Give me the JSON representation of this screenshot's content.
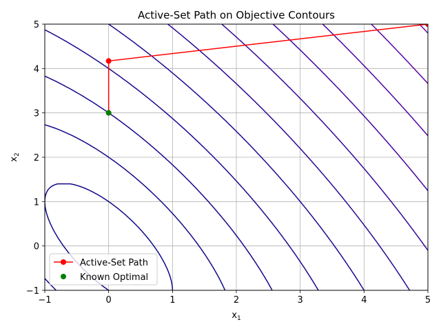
{
  "chart_data": {
    "type": "line",
    "title": "Active-Set Path on Objective Contours",
    "xlabel": {
      "base": "x",
      "sub": "1"
    },
    "ylabel": {
      "base": "x",
      "sub": "2"
    },
    "xlim": [
      -1,
      5
    ],
    "ylim": [
      -1,
      5
    ],
    "xticks": [
      -1,
      0,
      1,
      2,
      3,
      4,
      5
    ],
    "yticks": [
      -1,
      0,
      1,
      2,
      3,
      4,
      5
    ],
    "xtick_labels": [
      "−1",
      "0",
      "1",
      "2",
      "3",
      "4",
      "5"
    ],
    "ytick_labels": [
      "−1",
      "0",
      "1",
      "2",
      "3",
      "4",
      "5"
    ],
    "grid": true,
    "legend_position": "lower-left",
    "colormap": "plasma",
    "contours": {
      "function": "x1^2 + 0.5*x2^2 + x1*x2",
      "levels": [
        0.5,
        2,
        4.5,
        8,
        12.5,
        18,
        24.5,
        32,
        40.5,
        50,
        60.5,
        72,
        84.5,
        98,
        112.5,
        128,
        144.5,
        162,
        180.5,
        200,
        220.5,
        242,
        264.5,
        288,
        312.5
      ]
    },
    "series": [
      {
        "name": "Active-Set Path",
        "color": "#ff0000",
        "marker_color": "#ff0000",
        "x": [
          0,
          0,
          5
        ],
        "y": [
          3,
          4.17,
          5
        ]
      },
      {
        "name": "Known Optimal",
        "color": "#008000",
        "marker_color": "#008000",
        "x": [
          0
        ],
        "y": [
          3
        ]
      }
    ]
  }
}
